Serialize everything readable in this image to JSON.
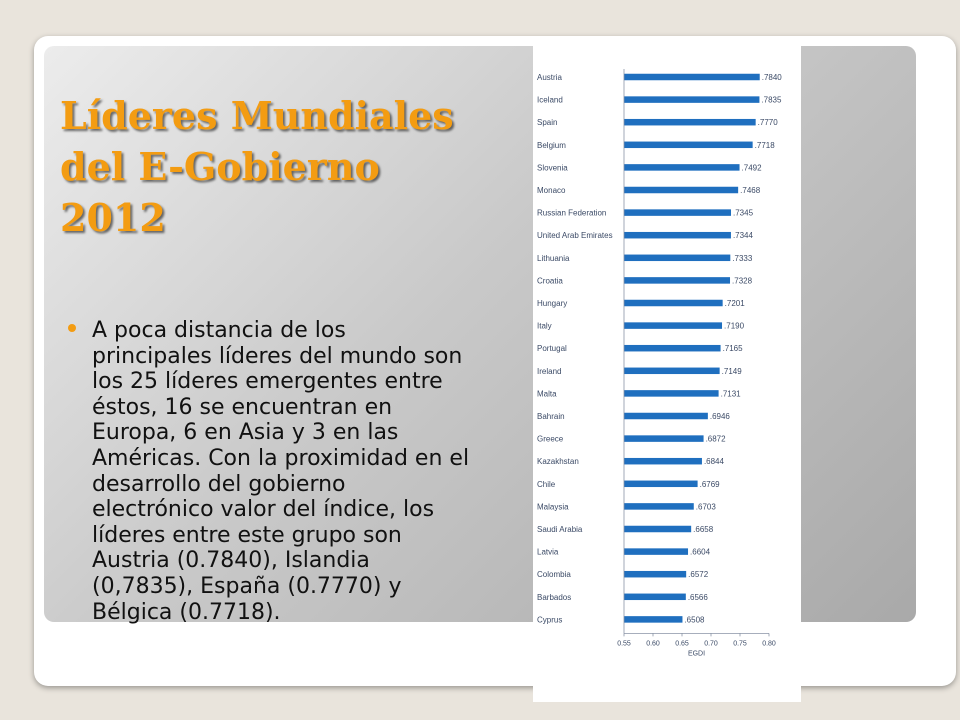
{
  "slide": {
    "title": "Líderes Mundiales del E-Gobierno 2012",
    "body": "A poca distancia de los principales líderes del mundo son los 25 líderes emergentes entre éstos, 16 se encuentran en Europa, 6 en Asia y 3 en las Américas. Con la proximidad en el desarrollo del gobierno electrónico valor del índice, los líderes entre este grupo son Austria (0.7840), Islandia (0,7835), España (0.7770) y Bélgica (0.7718).",
    "colors": {
      "title": "#f39c12",
      "bar": "#1f6fbf",
      "bullet": "#f39c12"
    }
  },
  "chart_data": {
    "type": "bar",
    "orientation": "horizontal",
    "categories": [
      "Austria",
      "Iceland",
      "Spain",
      "Belgium",
      "Slovenia",
      "Monaco",
      "Russian Federation",
      "United Arab Emirates",
      "Lithuania",
      "Croatia",
      "Hungary",
      "Italy",
      "Portugal",
      "Ireland",
      "Malta",
      "Bahrain",
      "Greece",
      "Kazakhstan",
      "Chile",
      "Malaysia",
      "Saudi Arabia",
      "Latvia",
      "Colombia",
      "Barbados",
      "Cyprus"
    ],
    "values": [
      0.784,
      0.7835,
      0.777,
      0.7718,
      0.7492,
      0.7468,
      0.7345,
      0.7344,
      0.7333,
      0.7328,
      0.7201,
      0.719,
      0.7165,
      0.7149,
      0.7131,
      0.6946,
      0.6872,
      0.6844,
      0.6769,
      0.6703,
      0.6658,
      0.6604,
      0.6572,
      0.6566,
      0.6508
    ],
    "value_labels": [
      ".7840",
      ".7835",
      ".7770",
      ".7718",
      ".7492",
      ".7468",
      ".7345",
      ".7344",
      ".7333",
      ".7328",
      ".7201",
      ".7190",
      ".7165",
      ".7149",
      ".7131",
      ".6946",
      ".6872",
      ".6844",
      ".6769",
      ".6703",
      ".6658",
      ".6604",
      ".6572",
      ".6566",
      ".6508"
    ],
    "xlabel": "EGDI",
    "xlim": [
      0.55,
      0.8
    ],
    "xticks": [
      0.55,
      0.6,
      0.65,
      0.7,
      0.75,
      0.8
    ],
    "xtick_labels": [
      "0.55",
      "0.60",
      "0.65",
      "0.70",
      "0.75",
      "0.80"
    ],
    "grid": false,
    "legend": "none"
  }
}
